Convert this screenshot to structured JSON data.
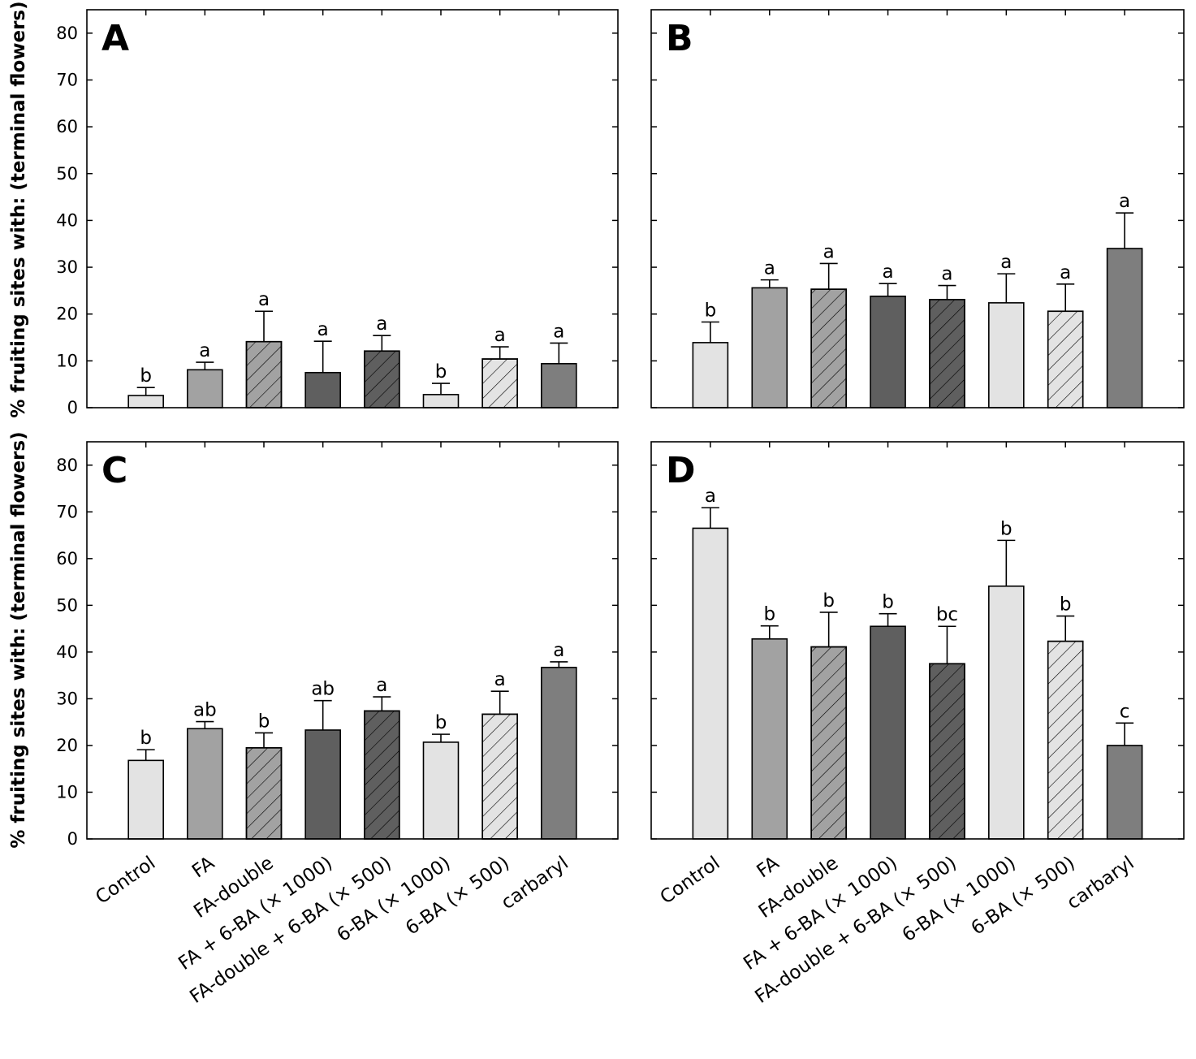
{
  "figure": {
    "ylabel": "% fruiting sites with: (terminal flowers)"
  },
  "chart_data": [
    {
      "panel": "A",
      "type": "bar",
      "ylabel": "% fruiting sites with: (terminal flowers)",
      "ylim": [
        0,
        85
      ],
      "yticks": [
        0,
        10,
        20,
        30,
        40,
        50,
        60,
        70,
        80
      ],
      "categories": [
        "Control",
        "FA",
        "FA-double",
        "FA + 6-BA (× 1000)",
        "FA-double + 6-BA (× 500)",
        "6-BA (× 1000)",
        "6-BA (× 500)",
        "carbaryl"
      ],
      "values": [
        2.6,
        8.1,
        14.1,
        7.5,
        12.1,
        2.8,
        10.4,
        9.4
      ],
      "errors": [
        1.7,
        1.6,
        6.5,
        6.7,
        3.3,
        2.4,
        2.6,
        4.4
      ],
      "letters": [
        "b",
        "a",
        "a",
        "a",
        "a",
        "b",
        "a",
        "a"
      ]
    },
    {
      "panel": "B",
      "type": "bar",
      "ylim": [
        0,
        85
      ],
      "yticks": [
        0,
        10,
        20,
        30,
        40,
        50,
        60,
        70,
        80
      ],
      "categories": [
        "Control",
        "FA",
        "FA-double",
        "FA + 6-BA (× 1000)",
        "FA-double + 6-BA (× 500)",
        "6-BA (× 1000)",
        "6-BA (× 500)",
        "carbaryl"
      ],
      "values": [
        13.9,
        25.6,
        25.3,
        23.8,
        23.1,
        22.4,
        20.6,
        34.0
      ],
      "errors": [
        4.4,
        1.7,
        5.5,
        2.7,
        3.0,
        6.2,
        5.8,
        7.6
      ],
      "letters": [
        "b",
        "a",
        "a",
        "a",
        "a",
        "a",
        "a",
        "a"
      ]
    },
    {
      "panel": "C",
      "type": "bar",
      "xlabel_shown": true,
      "ylabel": "% fruiting sites with: (terminal flowers)",
      "ylim": [
        0,
        85
      ],
      "yticks": [
        0,
        10,
        20,
        30,
        40,
        50,
        60,
        70,
        80
      ],
      "categories": [
        "Control",
        "FA",
        "FA-double",
        "FA + 6-BA (× 1000)",
        "FA-double + 6-BA (× 500)",
        "6-BA (× 1000)",
        "6-BA (× 500)",
        "carbaryl"
      ],
      "values": [
        16.8,
        23.6,
        19.5,
        23.3,
        27.4,
        20.7,
        26.7,
        36.7
      ],
      "errors": [
        2.3,
        1.5,
        3.2,
        6.3,
        3.0,
        1.7,
        4.9,
        1.2
      ],
      "letters": [
        "b",
        "ab",
        "b",
        "ab",
        "a",
        "b",
        "a",
        "a"
      ]
    },
    {
      "panel": "D",
      "type": "bar",
      "xlabel_shown": true,
      "ylim": [
        0,
        85
      ],
      "yticks": [
        0,
        10,
        20,
        30,
        40,
        50,
        60,
        70,
        80
      ],
      "categories": [
        "Control",
        "FA",
        "FA-double",
        "FA + 6-BA (× 1000)",
        "FA-double + 6-BA (× 500)",
        "6-BA (× 1000)",
        "6-BA (× 500)",
        "carbaryl"
      ],
      "values": [
        66.5,
        42.8,
        41.1,
        45.5,
        37.5,
        54.1,
        42.3,
        20.0
      ],
      "errors": [
        4.4,
        2.8,
        7.4,
        2.7,
        8.0,
        9.8,
        5.4,
        4.8
      ],
      "letters": [
        "a",
        "b",
        "b",
        "b",
        "bc",
        "b",
        "b",
        "c"
      ]
    }
  ],
  "bar_styles": [
    {
      "fill": "#e3e3e3",
      "hatch": false
    },
    {
      "fill": "#a2a2a2",
      "hatch": false
    },
    {
      "fill": "#a2a2a2",
      "hatch": true
    },
    {
      "fill": "#5f5f5f",
      "hatch": false
    },
    {
      "fill": "#5f5f5f",
      "hatch": true
    },
    {
      "fill": "#e3e3e3",
      "hatch": false
    },
    {
      "fill": "#e3e3e3",
      "hatch": true
    },
    {
      "fill": "#7e7e7e",
      "hatch": false
    }
  ]
}
